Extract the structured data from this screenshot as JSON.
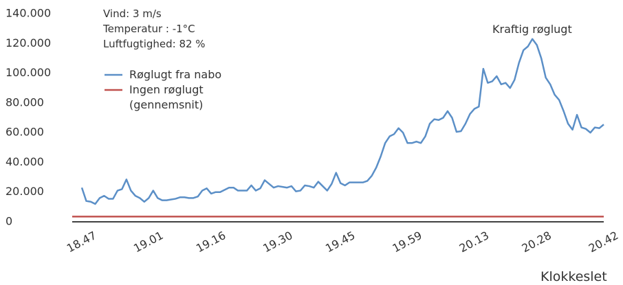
{
  "chart_data": {
    "type": "line",
    "annotations": [
      "Vind: 3 m/s",
      "Temperatur : -1°C",
      "Luftfugtighed: 82 %"
    ],
    "peak_label": "Kraftig røglugt",
    "x_label": "Klokkeslet",
    "ylim": [
      0,
      140000
    ],
    "yticks": [
      0,
      {
        "value": 20000,
        "label": "20.000"
      },
      {
        "value": 40000,
        "label": "40.000"
      },
      {
        "value": 60000,
        "label": "60.000"
      },
      {
        "value": 80000,
        "label": "80.000"
      },
      {
        "value": 100000,
        "label": "100.000"
      },
      {
        "value": 120000,
        "label": "120.000"
      },
      {
        "value": 140000,
        "label": "140.000"
      }
    ],
    "categories": [
      "18.47",
      null,
      null,
      null,
      null,
      null,
      null,
      null,
      null,
      null,
      null,
      null,
      null,
      null,
      null,
      "19.01",
      null,
      null,
      null,
      null,
      null,
      null,
      null,
      null,
      null,
      null,
      null,
      null,
      null,
      "19.16",
      null,
      null,
      null,
      null,
      null,
      null,
      null,
      null,
      null,
      null,
      null,
      null,
      null,
      null,
      "19.30",
      null,
      null,
      null,
      null,
      null,
      null,
      null,
      null,
      null,
      null,
      null,
      null,
      null,
      "19.45",
      null,
      null,
      null,
      null,
      null,
      null,
      null,
      null,
      null,
      null,
      null,
      null,
      null,
      null,
      "19.59",
      null,
      null,
      null,
      null,
      null,
      null,
      null,
      null,
      null,
      null,
      null,
      null,
      null,
      null,
      "20.13",
      null,
      null,
      null,
      null,
      null,
      null,
      null,
      null,
      null,
      null,
      null,
      null,
      null,
      "20.28",
      null,
      null,
      null,
      null,
      null,
      null,
      null,
      null,
      null,
      null,
      null,
      null,
      null,
      null,
      "20.42"
    ],
    "series": [
      {
        "name": "Røglugt fra nabo",
        "color": "#5b8fc7",
        "values": [
          23000,
          14000,
          13500,
          12000,
          16000,
          17500,
          15500,
          15500,
          21000,
          22000,
          28500,
          21000,
          17500,
          16000,
          13500,
          16000,
          21000,
          16000,
          14500,
          14500,
          15000,
          15500,
          16500,
          16500,
          16000,
          16000,
          17000,
          21000,
          22500,
          19000,
          20000,
          20000,
          21500,
          23000,
          23000,
          21000,
          21000,
          21000,
          24500,
          21000,
          22500,
          28000,
          25500,
          23000,
          24000,
          23500,
          23000,
          24000,
          20500,
          21000,
          24500,
          24000,
          23000,
          27000,
          24000,
          21000,
          25500,
          33000,
          26000,
          24500,
          26500,
          26500,
          26500,
          26500,
          27500,
          31000,
          36500,
          44000,
          53000,
          57500,
          59000,
          63000,
          60000,
          53000,
          53000,
          54000,
          53000,
          57500,
          66000,
          69000,
          68500,
          70000,
          74500,
          70000,
          60500,
          61000,
          66000,
          72500,
          76000,
          77500,
          103000,
          93500,
          94500,
          98000,
          92500,
          93500,
          90000,
          95500,
          107000,
          115500,
          118000,
          123000,
          119000,
          110000,
          97000,
          92500,
          85500,
          82000,
          74500,
          66000,
          62000,
          72000,
          63500,
          62500,
          60000,
          63500,
          63000,
          65500
        ]
      },
      {
        "name": "Ingen røglugt\n(gennemsnit)",
        "color": "#c0504d",
        "value": 3500
      }
    ]
  }
}
